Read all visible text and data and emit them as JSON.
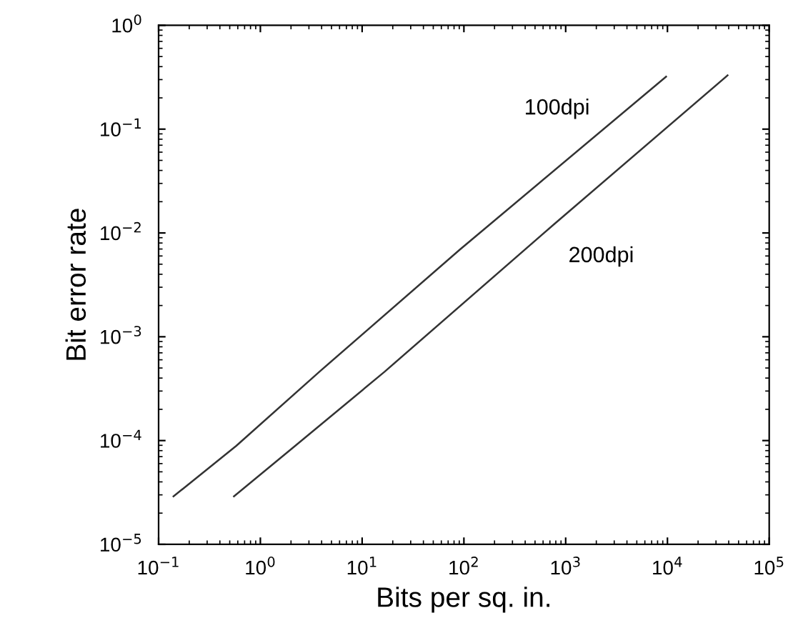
{
  "chart_data": {
    "type": "line",
    "xlabel": "Bits per sq. in.",
    "ylabel": "Bit error rate",
    "log": "xy",
    "grid": false,
    "marker": "none",
    "line_style": "solid",
    "xlim": [
      0.1,
      100000
    ],
    "ylim": [
      1e-05,
      1
    ],
    "xticks": [
      {
        "value": 0.1,
        "label": "10$^{−1}$"
      },
      {
        "value": 1,
        "label": "10$^{0}$"
      },
      {
        "value": 10,
        "label": "10$^{1}$"
      },
      {
        "value": 100,
        "label": "10$^{2}$"
      },
      {
        "value": 1000,
        "label": "10$^{3}$"
      },
      {
        "value": 10000,
        "label": "10$^{4}$"
      },
      {
        "value": 100000,
        "label": "10$^{5}$"
      }
    ],
    "yticks": [
      {
        "value": 1e-05,
        "label": "10$^{−5}$"
      },
      {
        "value": 0.0001,
        "label": "10$^{−4}$"
      },
      {
        "value": 0.001,
        "label": "10$^{−3}$"
      },
      {
        "value": 0.01,
        "label": "10$^{−2}$"
      },
      {
        "value": 0.1,
        "label": "10$^{−1}$"
      },
      {
        "value": 1,
        "label": "10$^{0}$"
      }
    ],
    "series": [
      {
        "name": "100dpi",
        "color": "#333333",
        "x": [
          0.14,
          0.58,
          3.8,
          91,
          9700
        ],
        "values": [
          2.9e-05,
          8.9e-05,
          0.00046,
          0.0069,
          0.32
        ]
      },
      {
        "name": "200dpi",
        "color": "#333333",
        "x": [
          0.55,
          2.2,
          16.6,
          760,
          39000
        ],
        "values": [
          2.9e-05,
          8.9e-05,
          0.00046,
          0.012,
          0.33
        ]
      }
    ]
  }
}
